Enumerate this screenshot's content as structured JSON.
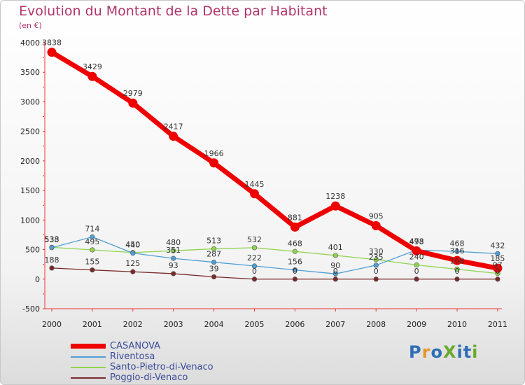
{
  "header": {
    "title": "Evolution du Montant de la Dette par Habitant",
    "subtitle": "(en €)"
  },
  "logo": {
    "text": "ProXiti",
    "colors": [
      "#2e6fb6",
      "#e8962a",
      "#2e6fb6",
      "#6aaa2a",
      "#2e6fb6",
      "#2e6fb6",
      "#6aaa2a"
    ]
  },
  "chart_data": {
    "type": "line",
    "title": "Evolution du Montant de la Dette par Habitant",
    "ylabel": "(en €)",
    "xlabel": "",
    "ylim": [
      -500,
      4000
    ],
    "yticks": [
      -500,
      0,
      500,
      1000,
      1500,
      2000,
      2500,
      3000,
      3500,
      4000
    ],
    "categories": [
      "2000",
      "2001",
      "2002",
      "2003",
      "2004",
      "2005",
      "2006",
      "2007",
      "2008",
      "2009",
      "2010",
      "2011"
    ],
    "grid": false,
    "legend": "bottom-left",
    "series": [
      {
        "name": "CASANOVA",
        "color": "#ee0000",
        "values": [
          3838,
          3429,
          2979,
          2417,
          1966,
          1445,
          881,
          1238,
          905,
          478,
          316,
          185
        ]
      },
      {
        "name": "Riventosa",
        "color": "#4f9fd4",
        "values": [
          533,
          714,
          440,
          351,
          287,
          222,
          156,
          90,
          235,
          493,
          468,
          432
        ]
      },
      {
        "name": "Santo-Pietro-di-Venaco",
        "color": "#8fd44e",
        "values": [
          538,
          495,
          450,
          480,
          513,
          532,
          468,
          401,
          330,
          240,
          168,
          97
        ]
      },
      {
        "name": "Poggio-di-Venaco",
        "color": "#7a2a2a",
        "values": [
          188,
          155,
          125,
          93,
          39,
          0,
          0,
          0,
          0,
          0,
          0,
          0
        ]
      }
    ]
  }
}
